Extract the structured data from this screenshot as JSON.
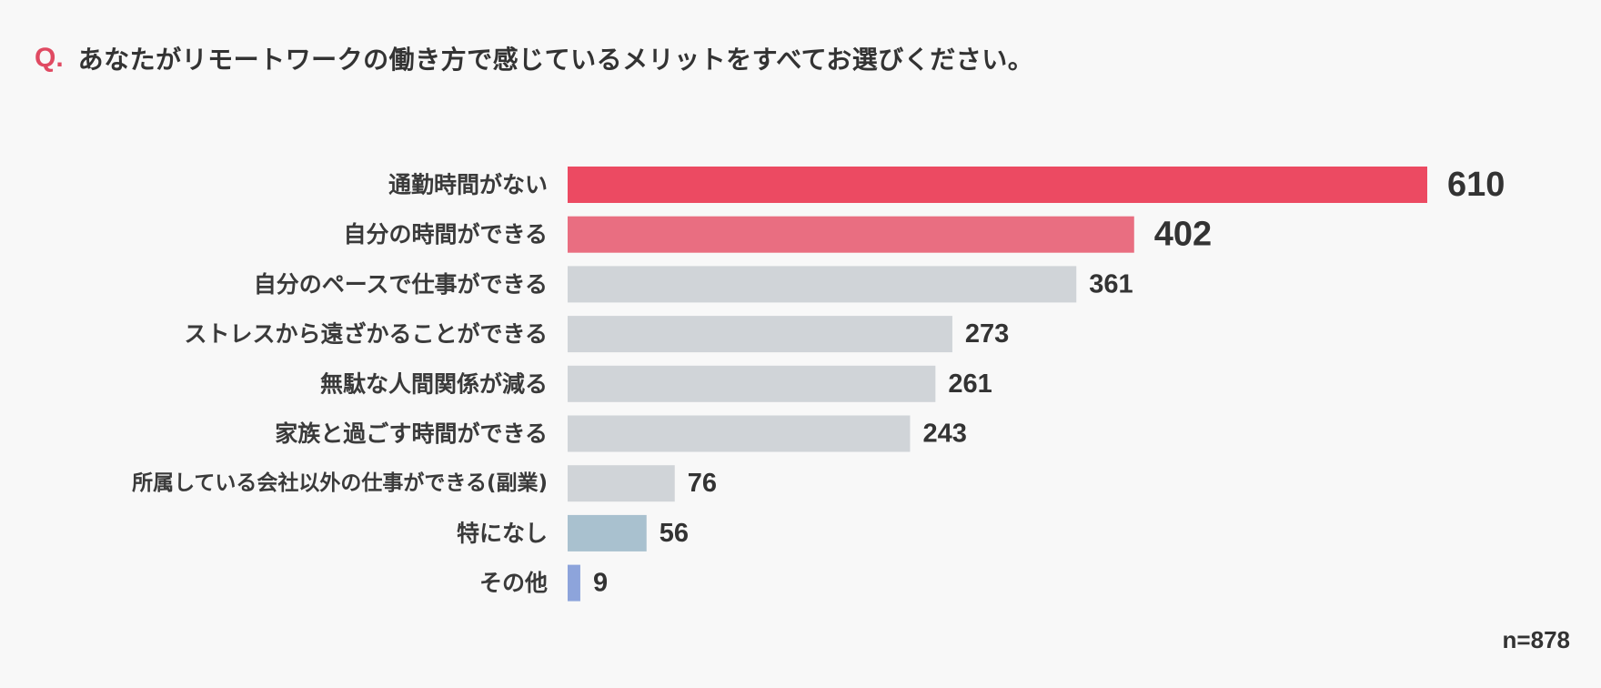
{
  "question": {
    "mark": "Q.",
    "text": "あなたがリモートワークの働き方で感じているメリットをすべてお選びください。"
  },
  "chart_data": {
    "type": "bar",
    "orientation": "horizontal",
    "title": "あなたがリモートワークの働き方で感じているメリットをすべてお選びください。",
    "categories": [
      "通勤時間がない",
      "自分の時間ができる",
      "自分のペースで仕事ができる",
      "ストレスから遠ざかることができる",
      "無駄な人間関係が減る",
      "家族と過ごす時間ができる",
      "所属している会社以外の仕事ができる(副業)",
      "特になし",
      "その他"
    ],
    "values": [
      610,
      402,
      361,
      273,
      261,
      243,
      76,
      56,
      9
    ],
    "colors": [
      "#ec4a62",
      "#e96e81",
      "#d0d4d8",
      "#d0d4d8",
      "#d0d4d8",
      "#d0d4d8",
      "#d0d4d8",
      "#a9c1cf",
      "#8da4db"
    ],
    "xlim": [
      0,
      610
    ],
    "grid": false,
    "legend": "none"
  },
  "sample_size": "n=878"
}
